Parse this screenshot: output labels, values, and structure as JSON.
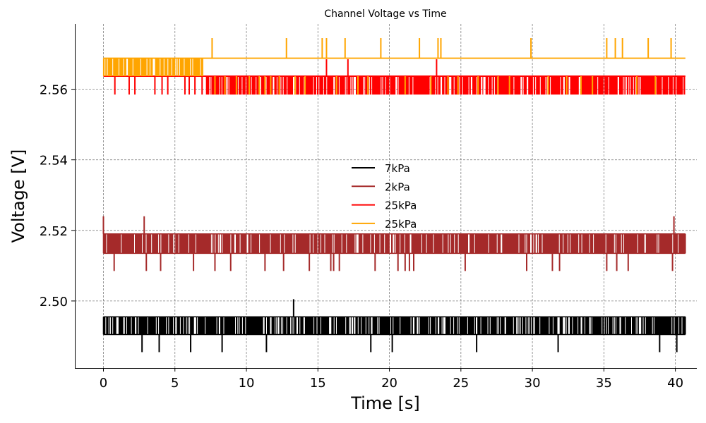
{
  "chart_data": {
    "type": "line",
    "title": "Channel Voltage vs Time",
    "xlabel": "Time [s]",
    "ylabel": "Voltage [V]",
    "xlim": [
      -2.0,
      41.5
    ],
    "ylim": [
      2.481,
      2.5785
    ],
    "xticks": [
      0,
      5,
      10,
      15,
      20,
      25,
      30,
      35,
      40
    ],
    "yticks": [
      2.5,
      2.52,
      2.54,
      2.56
    ],
    "ytick_labels": [
      "2.50",
      "2.52",
      "2.54",
      "2.56"
    ],
    "grid": true,
    "legend_position": "center",
    "series": [
      {
        "name": "7kPa",
        "color": "#000000",
        "duration": 40.7,
        "high": 2.4955,
        "low": 2.4905,
        "dips": [
          {
            "x": 2.7,
            "y": 2.4855
          },
          {
            "x": 3.9,
            "y": 2.4855
          },
          {
            "x": 6.1,
            "y": 2.4855
          },
          {
            "x": 8.3,
            "y": 2.4855
          },
          {
            "x": 11.4,
            "y": 2.4855
          },
          {
            "x": 18.7,
            "y": 2.4855
          },
          {
            "x": 20.2,
            "y": 2.4855
          },
          {
            "x": 26.1,
            "y": 2.4855
          },
          {
            "x": 31.8,
            "y": 2.4855
          },
          {
            "x": 38.9,
            "y": 2.4855
          },
          {
            "x": 40.1,
            "y": 2.4855
          }
        ],
        "spikes": [
          {
            "x": 13.3,
            "y": 2.5005
          }
        ]
      },
      {
        "name": "2kPa",
        "color": "#a52a2a",
        "duration": 40.7,
        "high": 2.519,
        "low": 2.5135,
        "dips": [
          {
            "x": 0.75,
            "y": 2.5085
          },
          {
            "x": 3.0,
            "y": 2.5085
          },
          {
            "x": 4.0,
            "y": 2.5085
          },
          {
            "x": 6.3,
            "y": 2.5085
          },
          {
            "x": 7.8,
            "y": 2.5085
          },
          {
            "x": 8.9,
            "y": 2.5085
          },
          {
            "x": 11.3,
            "y": 2.5085
          },
          {
            "x": 12.6,
            "y": 2.5085
          },
          {
            "x": 14.4,
            "y": 2.5085
          },
          {
            "x": 15.9,
            "y": 2.5085
          },
          {
            "x": 16.1,
            "y": 2.5085
          },
          {
            "x": 16.5,
            "y": 2.5085
          },
          {
            "x": 19.0,
            "y": 2.5085
          },
          {
            "x": 20.6,
            "y": 2.5085
          },
          {
            "x": 21.1,
            "y": 2.5085
          },
          {
            "x": 21.4,
            "y": 2.5085
          },
          {
            "x": 21.7,
            "y": 2.5085
          },
          {
            "x": 25.3,
            "y": 2.5085
          },
          {
            "x": 29.6,
            "y": 2.5085
          },
          {
            "x": 31.4,
            "y": 2.5085
          },
          {
            "x": 31.9,
            "y": 2.5085
          },
          {
            "x": 35.2,
            "y": 2.5085
          },
          {
            "x": 35.9,
            "y": 2.5085
          },
          {
            "x": 36.7,
            "y": 2.5085
          },
          {
            "x": 39.8,
            "y": 2.5085
          }
        ],
        "spikes": [
          {
            "x": 0.0,
            "y": 2.524
          },
          {
            "x": 2.85,
            "y": 2.524
          },
          {
            "x": 39.9,
            "y": 2.524
          }
        ]
      },
      {
        "name": "25kPa",
        "color": "#ff0000",
        "duration": 40.7,
        "high": 2.5637,
        "low": 2.5585,
        "dense_from": 7.2,
        "sparse_dips": [
          0.8,
          1.8,
          2.2,
          3.6,
          4.1,
          4.5,
          5.7,
          6.0,
          6.4,
          6.9
        ],
        "dips": [],
        "spikes": [
          {
            "x": 15.6,
            "y": 2.5685
          },
          {
            "x": 17.1,
            "y": 2.5685
          },
          {
            "x": 23.3,
            "y": 2.5685
          }
        ]
      },
      {
        "name": "25kPa",
        "color": "#ffa500",
        "duration": 40.7,
        "high": 2.5688,
        "low": 2.5637,
        "dense_until": 7.0,
        "spikes": [
          {
            "x": 7.6,
            "y": 2.5745
          },
          {
            "x": 12.8,
            "y": 2.5745
          },
          {
            "x": 15.3,
            "y": 2.5745
          },
          {
            "x": 15.6,
            "y": 2.5745
          },
          {
            "x": 16.9,
            "y": 2.5745
          },
          {
            "x": 19.4,
            "y": 2.5745
          },
          {
            "x": 22.1,
            "y": 2.5745
          },
          {
            "x": 23.4,
            "y": 2.5745
          },
          {
            "x": 23.6,
            "y": 2.5745
          },
          {
            "x": 29.9,
            "y": 2.5745
          },
          {
            "x": 35.2,
            "y": 2.5745
          },
          {
            "x": 35.8,
            "y": 2.5745
          },
          {
            "x": 36.3,
            "y": 2.5745
          },
          {
            "x": 38.1,
            "y": 2.5745
          },
          {
            "x": 39.7,
            "y": 2.5745
          }
        ],
        "dips": [
          {
            "x": 7.8,
            "y": 2.5585
          },
          {
            "x": 8.5,
            "y": 2.5585
          },
          {
            "x": 9.3,
            "y": 2.5585
          },
          {
            "x": 10.2,
            "y": 2.5585
          },
          {
            "x": 10.9,
            "y": 2.5585
          },
          {
            "x": 11.3,
            "y": 2.5585
          },
          {
            "x": 11.7,
            "y": 2.5585
          },
          {
            "x": 12.3,
            "y": 2.5585
          },
          {
            "x": 13.4,
            "y": 2.5585
          },
          {
            "x": 14.1,
            "y": 2.5585
          },
          {
            "x": 16.3,
            "y": 2.5585
          },
          {
            "x": 17.8,
            "y": 2.5585
          },
          {
            "x": 18.5,
            "y": 2.5585
          },
          {
            "x": 21.1,
            "y": 2.5585
          },
          {
            "x": 22.9,
            "y": 2.5585
          },
          {
            "x": 24.1,
            "y": 2.5585
          },
          {
            "x": 24.8,
            "y": 2.5585
          },
          {
            "x": 26.2,
            "y": 2.5585
          },
          {
            "x": 27.6,
            "y": 2.5585
          },
          {
            "x": 28.4,
            "y": 2.5585
          },
          {
            "x": 31.1,
            "y": 2.5585
          },
          {
            "x": 32.4,
            "y": 2.5585
          },
          {
            "x": 33.4,
            "y": 2.5585
          },
          {
            "x": 34.2,
            "y": 2.5585
          },
          {
            "x": 37.3,
            "y": 2.5585
          },
          {
            "x": 38.6,
            "y": 2.5585
          }
        ]
      }
    ]
  }
}
